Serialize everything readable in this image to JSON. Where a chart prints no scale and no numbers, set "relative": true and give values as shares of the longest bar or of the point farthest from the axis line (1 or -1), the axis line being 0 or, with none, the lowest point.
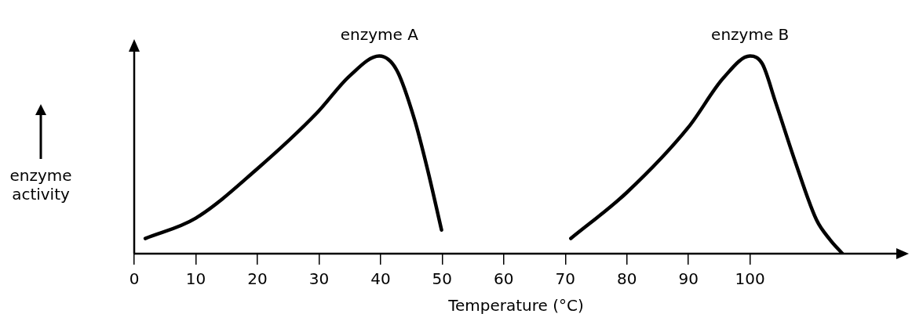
{
  "chart_data": {
    "type": "line",
    "xlabel": "Temperature (°C)",
    "ylabel": "enzyme activity",
    "relative": true,
    "xlim": [
      0,
      124
    ],
    "xticks": [
      0,
      10,
      20,
      30,
      40,
      50,
      60,
      70,
      80,
      90,
      100
    ],
    "marker": "none",
    "line_style": "solid",
    "series": [
      {
        "name": "enzyme A",
        "color": "#000000",
        "x": [
          1.8,
          10,
          20,
          29.6,
          35,
          39.8,
          42.6,
          45.5,
          47.6,
          49.9
        ],
        "values": [
          0.077,
          0.18,
          0.43,
          0.71,
          0.9,
          1,
          0.93,
          0.68,
          0.43,
          0.12
        ]
      },
      {
        "name": "enzyme B",
        "color": "#000000",
        "x": [
          70.9,
          80,
          90,
          95.7,
          100,
          102,
          104.1,
          107.5,
          110.8,
          113,
          115
        ],
        "values": [
          0.077,
          0.31,
          0.64,
          0.89,
          1,
          0.96,
          0.77,
          0.45,
          0.17,
          0.07,
          0
        ]
      }
    ]
  }
}
